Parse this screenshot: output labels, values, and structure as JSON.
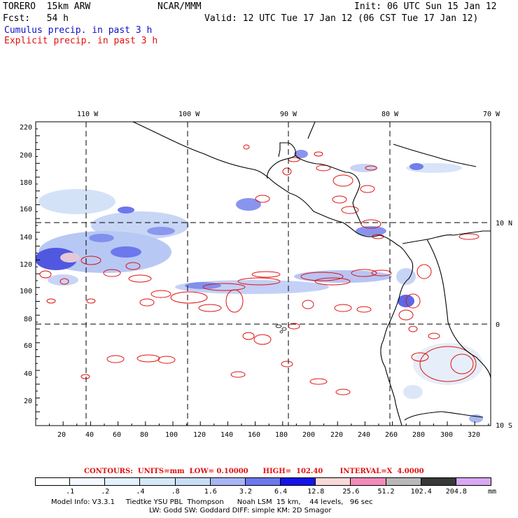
{
  "header": {
    "model": "TORERO  15km ARW",
    "org": "NCAR/MMM",
    "init": "Init: 06 UTC Sun 15 Jan 12",
    "fcst": "Fcst:   54 h",
    "valid": "Valid: 12 UTC Tue 17 Jan 12 (06 CST Tue 17 Jan 12)",
    "cumulus_label": "Cumulus precip. in past 3 h",
    "explicit_label": "Explicit precip. in past 3 h"
  },
  "map": {
    "lon_labels": [
      "110 W",
      "100 W",
      "90 W",
      "80 W",
      "70 W"
    ],
    "lat_labels": [
      "10 N",
      "0",
      "10 S"
    ],
    "y_ticks": [
      "220",
      "200",
      "180",
      "160",
      "140",
      "120",
      "100",
      "80",
      "60",
      "40",
      "20"
    ],
    "x_ticks": [
      "20",
      "40",
      "60",
      "80",
      "100",
      "120",
      "140",
      "160",
      "180",
      "200",
      "220",
      "240",
      "260",
      "280",
      "300",
      "320"
    ],
    "colors": {
      "cumulus": "#1010c8",
      "explicit": "#e01010",
      "coast": "#000000"
    }
  },
  "contour_info": "CONTOURS:  UNITS=mm  LOW= 0.10000      HIGH=  102.40       INTERVAL=X  4.0000",
  "legend": {
    "unit": "mm",
    "labels": [
      ".1",
      ".2",
      ".4",
      ".8",
      "1.6",
      "3.2",
      "6.4",
      "12.8",
      "25.6",
      "51.2",
      "102.4",
      "204.8"
    ],
    "colors": [
      "#ffffff",
      "#f4f8fe",
      "#e4f0fb",
      "#d4e8f8",
      "#c8dcf8",
      "#a8b4f4",
      "#6c78ec",
      "#1414e8",
      "#f8d8d8",
      "#f28cb8",
      "#b8b8b8",
      "#383838",
      "#d8a8f4"
    ]
  },
  "model_info": {
    "line1": "Model Info: V3.3.1     Tiedtke YSU PBL  Thompson      Noah LSM  15 km,    44 levels,   96 sec",
    "line2": "LW: Godd SW: Goddard DIFF: simple KM: 2D Smagor"
  }
}
